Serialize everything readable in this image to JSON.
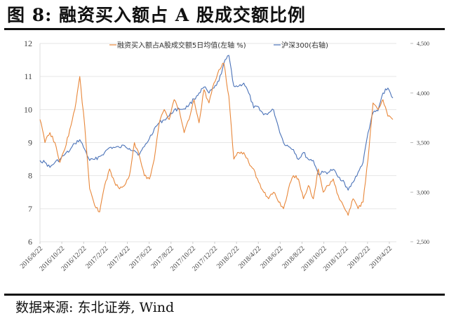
{
  "title": "图 8:  融资买入额占 A 股成交额比例",
  "source": "数据来源:  东北证券,  Wind",
  "colors": {
    "margin_ratio": "#E8873A",
    "csi300": "#4A72B8",
    "grid": "#E6E6E6"
  },
  "chart_data": {
    "type": "line",
    "title": "融资买入额占A股成交额比例",
    "xlabel": "",
    "ylabel_left": "融资买入额占A股成交额5日均值(左轴 %)",
    "ylabel_right": "沪深300(右轴)",
    "ylim_left": [
      6,
      12
    ],
    "ylim_right": [
      2500,
      4500
    ],
    "yticks_left": [
      "6",
      "7",
      "8",
      "9",
      "10",
      "11",
      "12"
    ],
    "yticks_right": [
      "2,500",
      "3,000",
      "3,500",
      "4,000",
      "4,500"
    ],
    "xticks": [
      "2016/8/22",
      "2016/10/22",
      "2016/12/22",
      "2017/2/22",
      "2017/4/22",
      "2017/6/22",
      "2017/8/22",
      "2017/10/22",
      "2017/12/22",
      "2018/2/22",
      "2018/4/22",
      "2018/6/22",
      "2018/8/22",
      "2018/10/22",
      "2018/12/22",
      "2019/2/22",
      "2019/4/22"
    ],
    "legend_position": "top",
    "grid": "horizontal",
    "series": [
      {
        "name": "融资买入额占A股成交额5日均值(左轴 %)",
        "axis": "left",
        "x": [
          "2016/8/22",
          "2016/9/5",
          "2016/9/19",
          "2016/10/3",
          "2016/10/17",
          "2016/10/31",
          "2016/11/14",
          "2016/11/28",
          "2016/12/5",
          "2016/12/12",
          "2016/12/26",
          "2017/1/9",
          "2017/1/23",
          "2017/2/6",
          "2017/2/20",
          "2017/3/6",
          "2017/3/20",
          "2017/4/3",
          "2017/4/17",
          "2017/5/1",
          "2017/5/15",
          "2017/5/29",
          "2017/6/12",
          "2017/6/26",
          "2017/7/10",
          "2017/7/24",
          "2017/8/7",
          "2017/8/21",
          "2017/9/4",
          "2017/9/18",
          "2017/10/2",
          "2017/10/16",
          "2017/10/30",
          "2017/11/13",
          "2017/11/27",
          "2017/12/11",
          "2017/12/25",
          "2018/1/8",
          "2018/1/22",
          "2018/2/5",
          "2018/2/19",
          "2018/3/5",
          "2018/3/19",
          "2018/4/2",
          "2018/4/16",
          "2018/4/30",
          "2018/5/14",
          "2018/5/28",
          "2018/6/11",
          "2018/6/25",
          "2018/7/9",
          "2018/7/23",
          "2018/8/6",
          "2018/8/20",
          "2018/9/3",
          "2018/9/17",
          "2018/10/1",
          "2018/10/15",
          "2018/10/29",
          "2018/11/12",
          "2018/11/26",
          "2018/12/10",
          "2018/12/24",
          "2019/1/7",
          "2019/1/21",
          "2019/2/4",
          "2019/2/18",
          "2019/3/4",
          "2019/3/18",
          "2019/4/1",
          "2019/4/15",
          "2019/4/29"
        ],
        "values": [
          9.7,
          9.0,
          9.3,
          9.0,
          8.4,
          8.8,
          9.4,
          10.0,
          11.0,
          9.5,
          7.6,
          7.1,
          6.9,
          7.7,
          8.2,
          7.8,
          7.6,
          7.7,
          8.0,
          9.0,
          8.6,
          8.0,
          7.9,
          8.5,
          9.6,
          10.0,
          9.7,
          10.3,
          10.0,
          9.3,
          9.7,
          10.3,
          9.6,
          10.6,
          10.2,
          10.8,
          11.2,
          11.4,
          10.4,
          8.5,
          8.7,
          8.7,
          8.4,
          8.2,
          7.8,
          7.5,
          7.3,
          7.5,
          7.2,
          7.0,
          7.6,
          8.0,
          7.9,
          7.3,
          7.7,
          7.3,
          8.2,
          7.5,
          7.7,
          7.9,
          7.4,
          7.1,
          6.8,
          7.3,
          7.0,
          7.2,
          8.5,
          10.2,
          10.0,
          10.3,
          9.8,
          9.7
        ]
      },
      {
        "name": "沪深300(右轴)",
        "axis": "right",
        "x": [
          "2016/8/22",
          "2016/9/5",
          "2016/9/19",
          "2016/10/3",
          "2016/10/17",
          "2016/10/31",
          "2016/11/14",
          "2016/11/28",
          "2016/12/5",
          "2016/12/12",
          "2016/12/26",
          "2017/1/9",
          "2017/1/23",
          "2017/2/6",
          "2017/2/20",
          "2017/3/6",
          "2017/3/20",
          "2017/4/3",
          "2017/4/17",
          "2017/5/1",
          "2017/5/15",
          "2017/5/29",
          "2017/6/12",
          "2017/6/26",
          "2017/7/10",
          "2017/7/24",
          "2017/8/7",
          "2017/8/21",
          "2017/9/4",
          "2017/9/18",
          "2017/10/2",
          "2017/10/16",
          "2017/10/30",
          "2017/11/13",
          "2017/11/27",
          "2017/12/11",
          "2017/12/25",
          "2018/1/8",
          "2018/1/22",
          "2018/2/5",
          "2018/2/19",
          "2018/3/5",
          "2018/3/19",
          "2018/4/2",
          "2018/4/16",
          "2018/4/30",
          "2018/5/14",
          "2018/5/28",
          "2018/6/11",
          "2018/6/25",
          "2018/7/9",
          "2018/7/23",
          "2018/8/6",
          "2018/8/20",
          "2018/9/3",
          "2018/9/17",
          "2018/10/1",
          "2018/10/15",
          "2018/10/29",
          "2018/11/12",
          "2018/11/26",
          "2018/12/10",
          "2018/12/24",
          "2019/1/7",
          "2019/1/21",
          "2019/2/4",
          "2019/2/18",
          "2019/3/4",
          "2019/3/18",
          "2019/4/1",
          "2019/4/15",
          "2019/4/29"
        ],
        "values": [
          3320,
          3300,
          3250,
          3300,
          3330,
          3380,
          3420,
          3490,
          3530,
          3430,
          3320,
          3330,
          3360,
          3400,
          3450,
          3450,
          3450,
          3470,
          3440,
          3420,
          3380,
          3460,
          3540,
          3640,
          3700,
          3730,
          3770,
          3830,
          3840,
          3840,
          3880,
          3940,
          4000,
          4060,
          4000,
          4050,
          4120,
          4300,
          4380,
          4070,
          4070,
          4100,
          4000,
          3850,
          3860,
          3780,
          3800,
          3830,
          3650,
          3500,
          3460,
          3430,
          3330,
          3400,
          3330,
          3320,
          3180,
          3200,
          3200,
          3230,
          3150,
          3120,
          3020,
          3100,
          3200,
          3300,
          3600,
          3800,
          3820,
          4000,
          4050,
          3950
        ]
      }
    ]
  }
}
